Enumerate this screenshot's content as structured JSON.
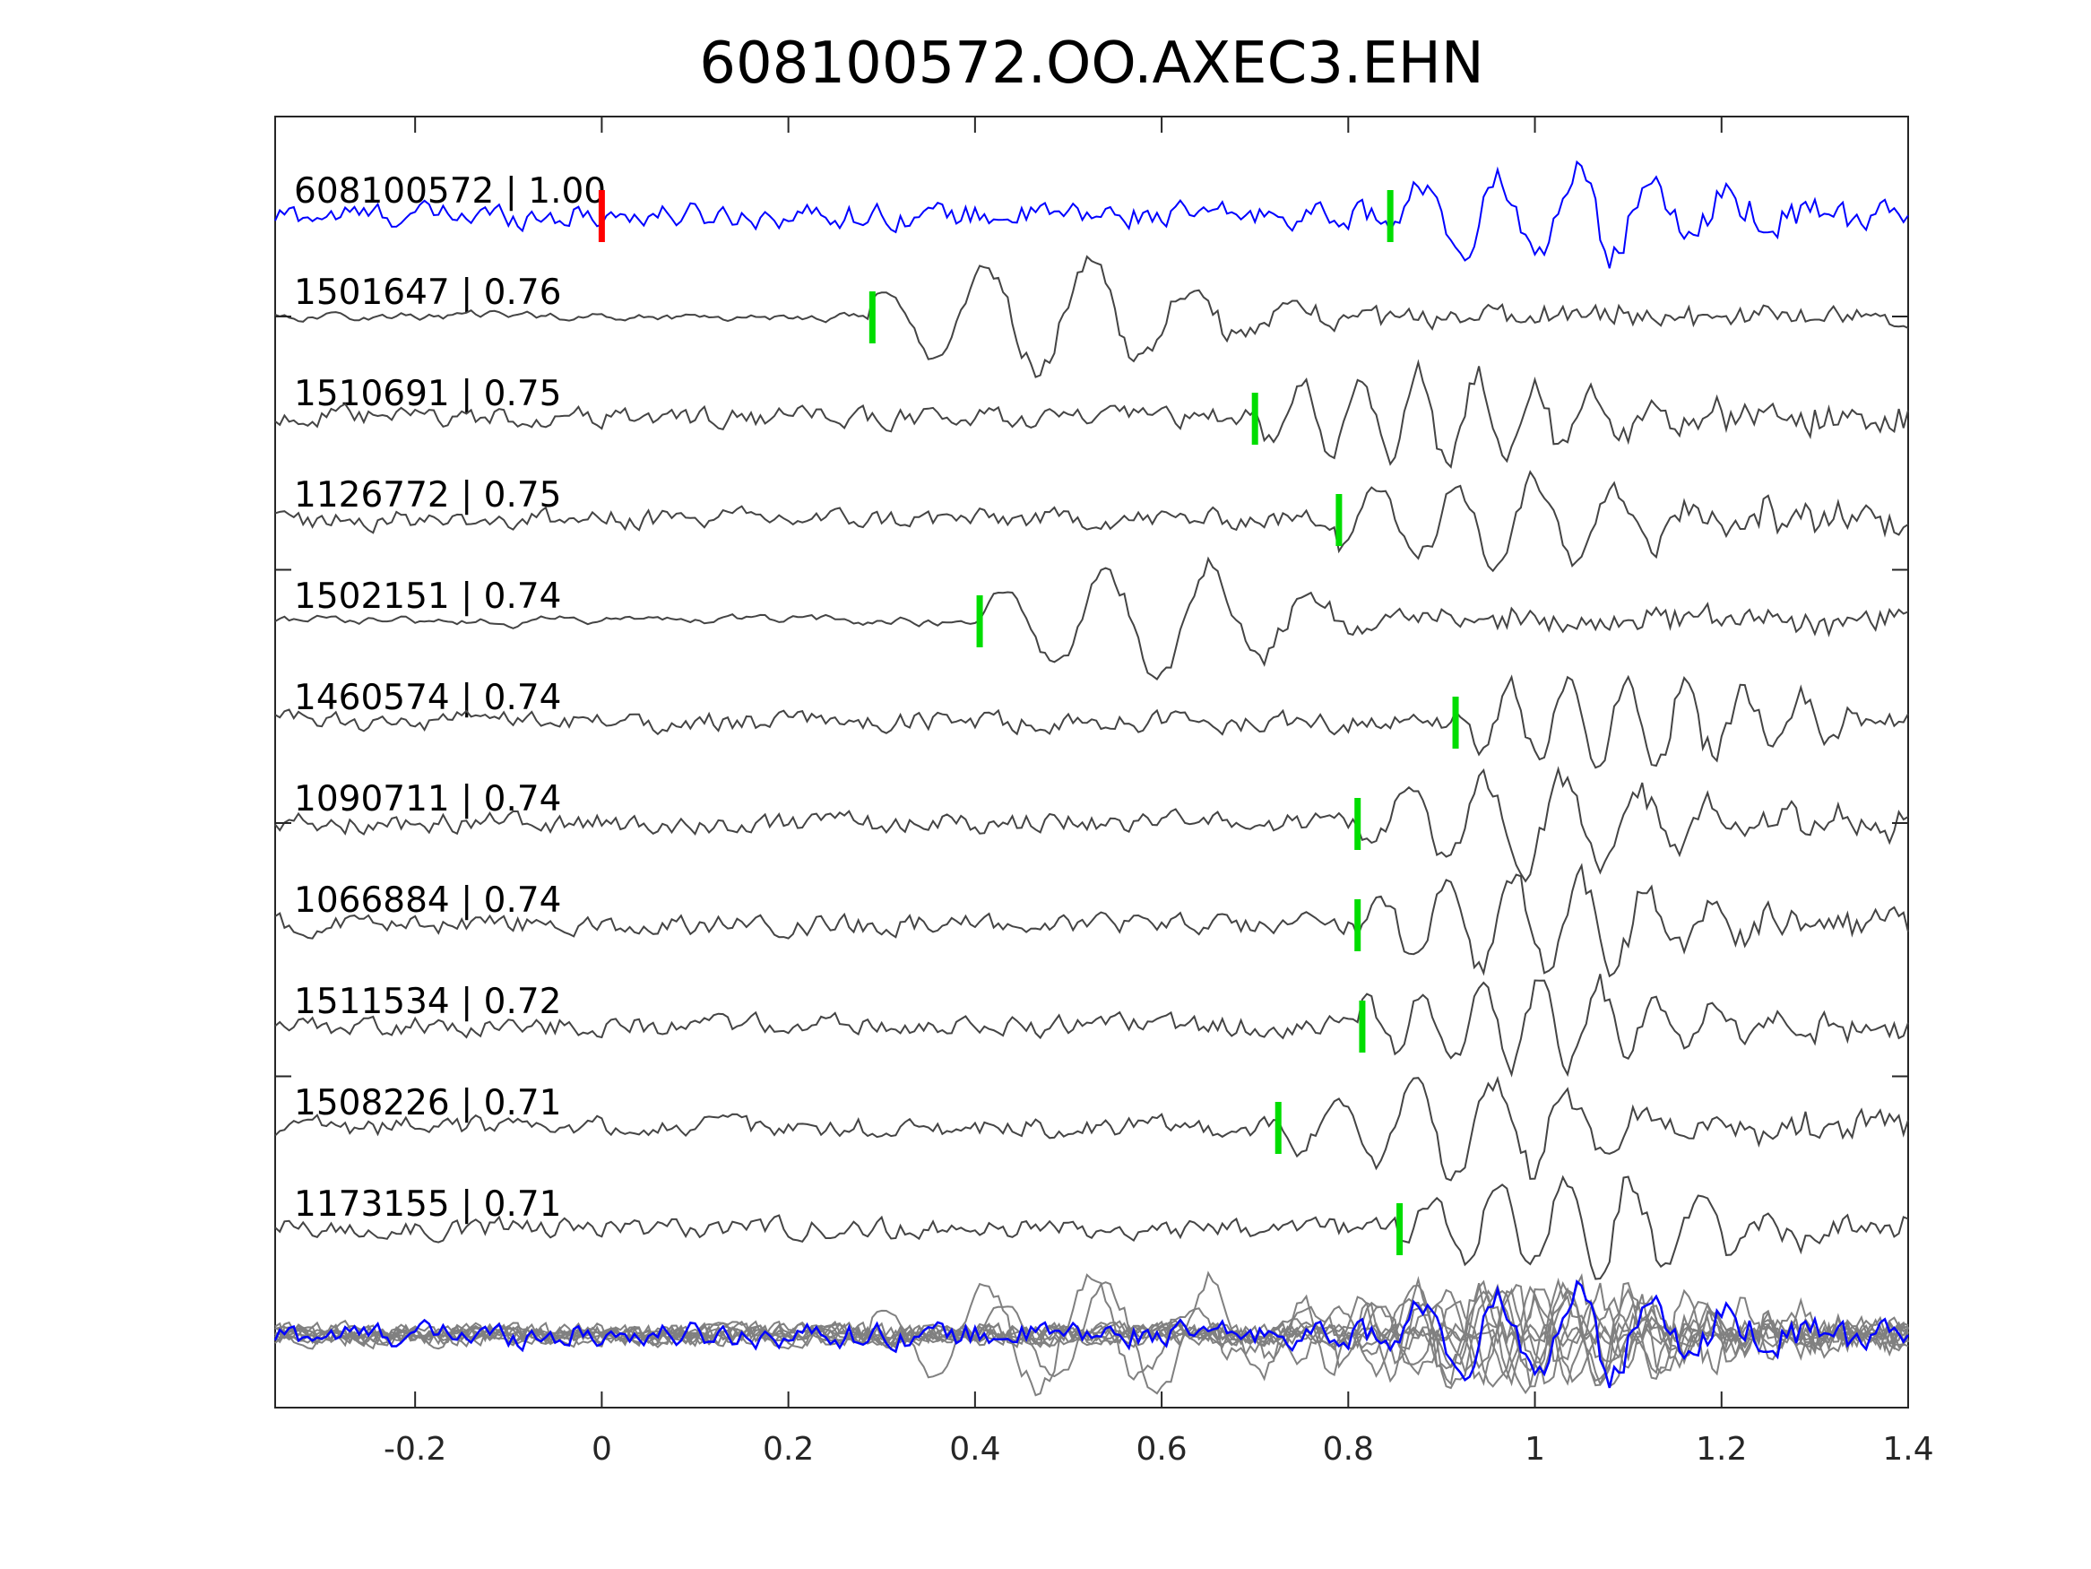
{
  "chart_data": {
    "type": "line",
    "title": "608100572.OO.AXEC3.EHN",
    "xlabel": "",
    "ylabel": "",
    "xlim": [
      -0.35,
      1.4
    ],
    "x_ticks": [
      "-0.2",
      "0",
      "0.2",
      "0.4",
      "0.6",
      "0.8",
      "1",
      "1.2",
      "1.4"
    ],
    "x_tick_values": [
      -0.2,
      0,
      0.2,
      0.4,
      0.6,
      0.8,
      1,
      1.2,
      1.4
    ],
    "grid": false,
    "reference_pick": 0,
    "colors": {
      "reference": "#0000ff",
      "trace": "#444444",
      "stack": "#808080",
      "ref_pick": "#ff0000",
      "pick": "#00dd00"
    },
    "traces": [
      {
        "label": "608100572 | 1.00",
        "pick": 0.845,
        "reference": true
      },
      {
        "label": "1501647 | 0.76",
        "pick": 0.29
      },
      {
        "label": "1510691 | 0.75",
        "pick": 0.7
      },
      {
        "label": "1126772 | 0.75",
        "pick": 0.79
      },
      {
        "label": "1502151 | 0.74",
        "pick": 0.405
      },
      {
        "label": "1460574 | 0.74",
        "pick": 0.915
      },
      {
        "label": "1090711 | 0.74",
        "pick": 0.81
      },
      {
        "label": "1066884 | 0.74",
        "pick": 0.81
      },
      {
        "label": "1511534 | 0.72",
        "pick": 0.815
      },
      {
        "label": "1508226 | 0.71",
        "pick": 0.725
      },
      {
        "label": "1173155 | 0.71",
        "pick": 0.855
      }
    ]
  }
}
